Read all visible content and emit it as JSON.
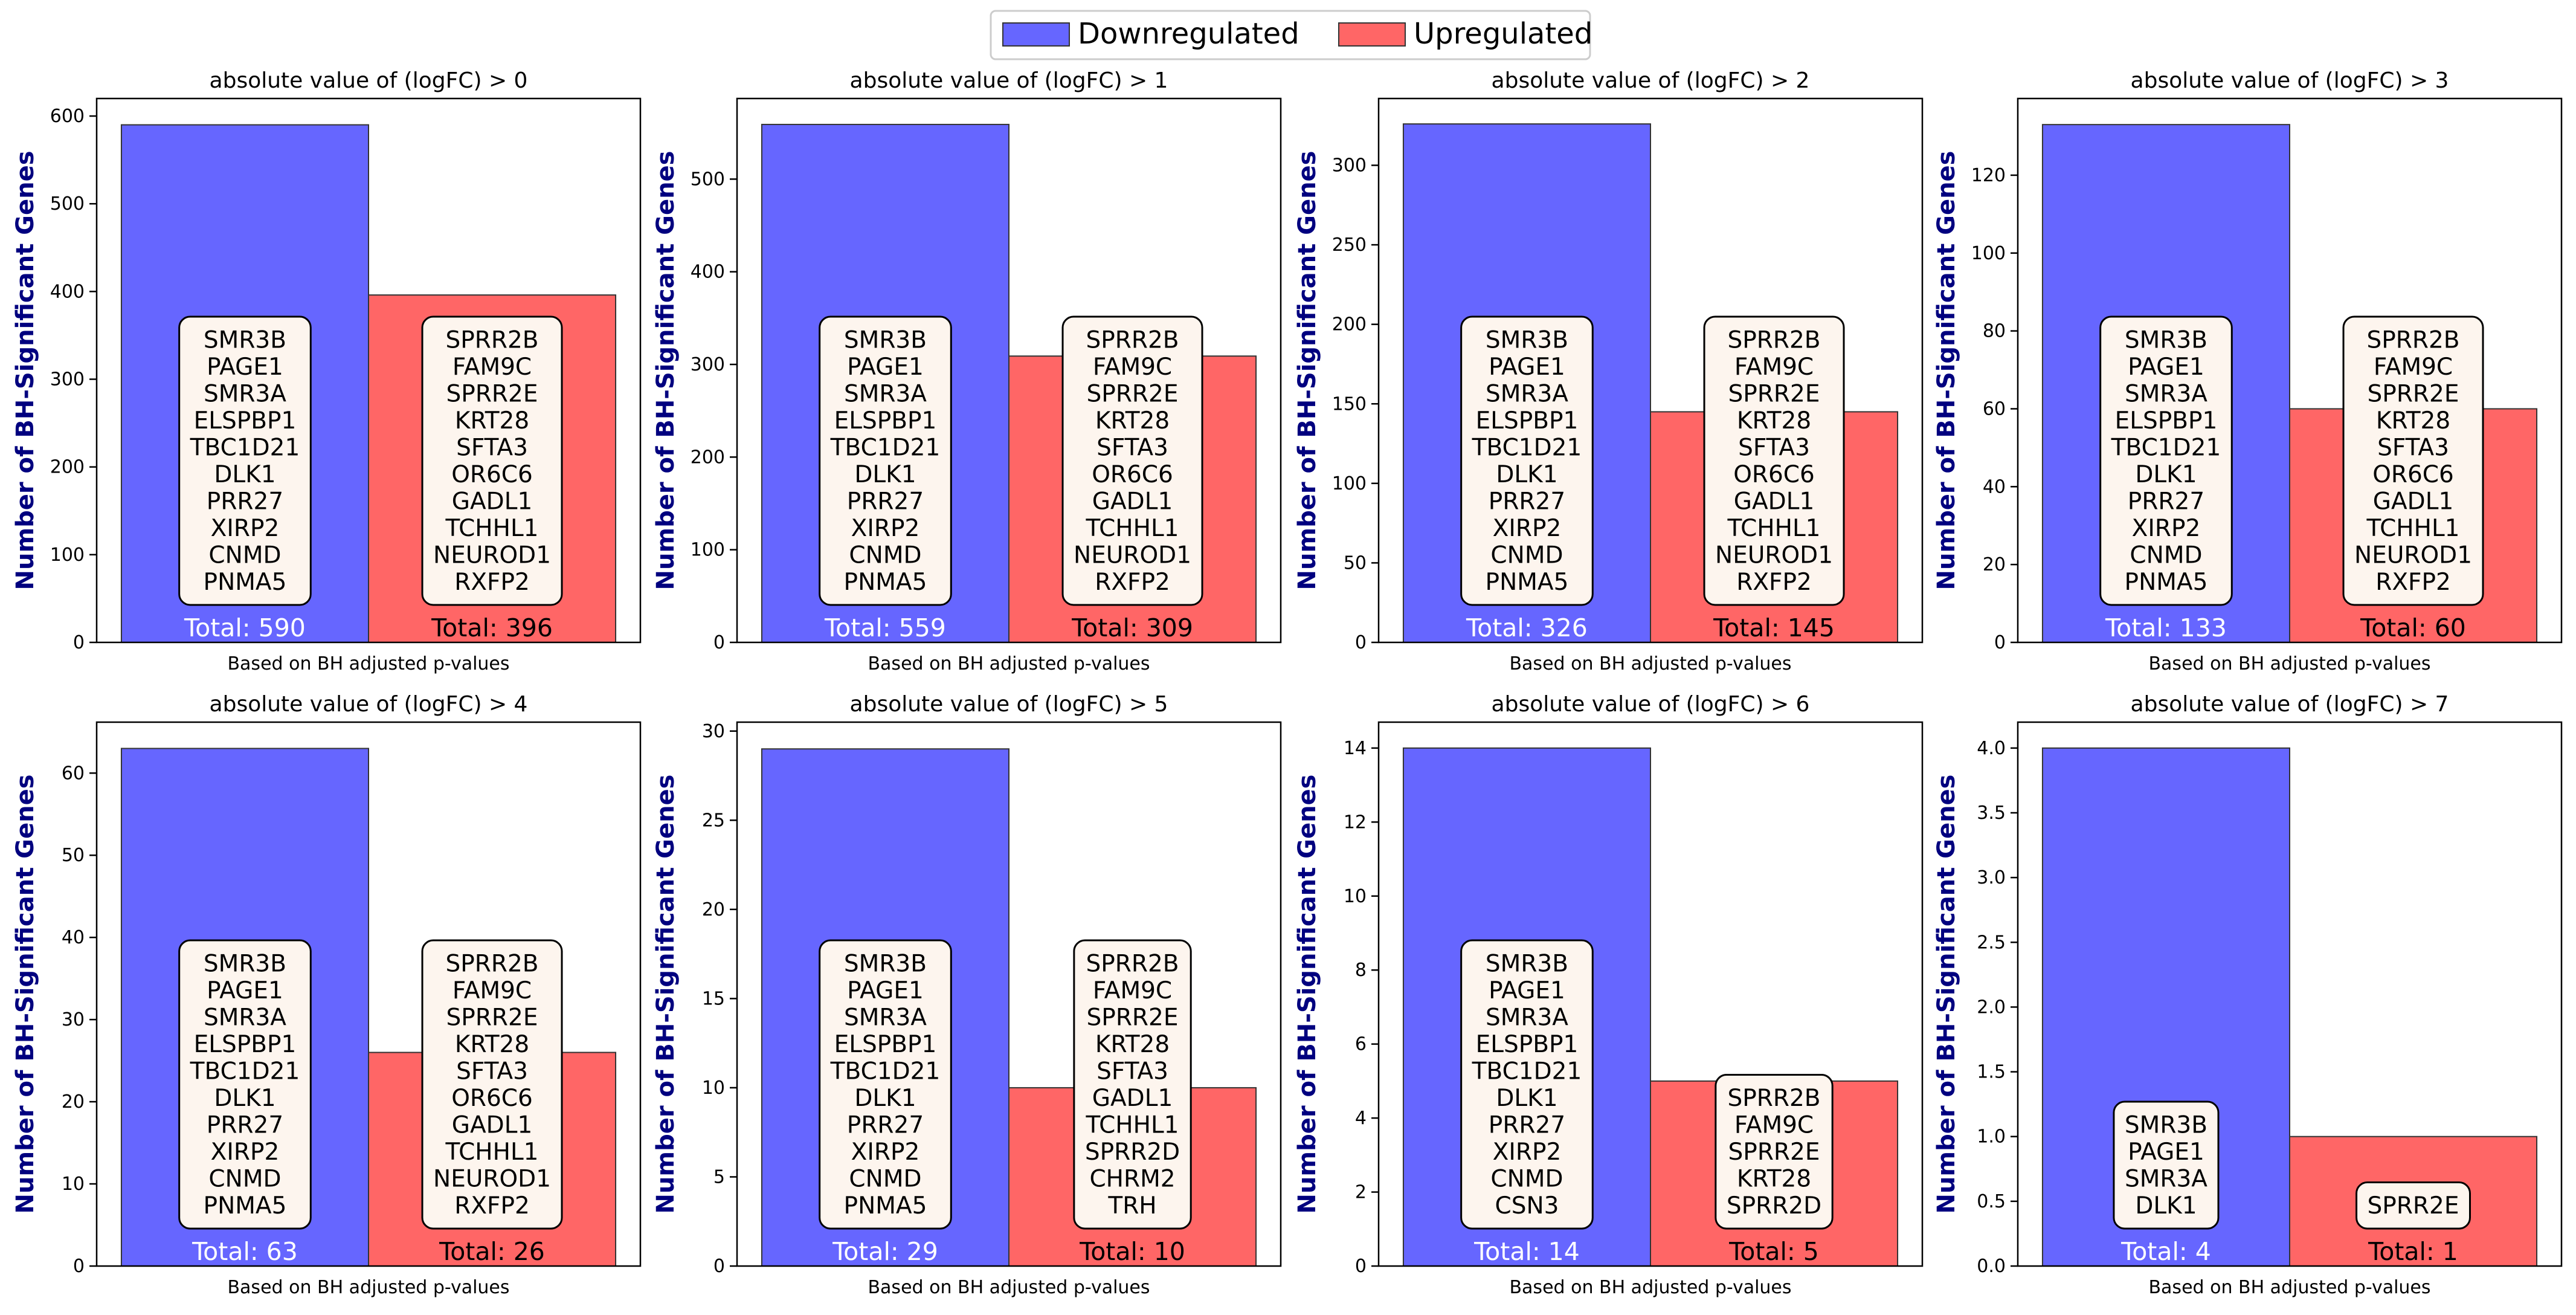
{
  "legend": [
    {
      "label": "Downregulated",
      "color": "#6666ff"
    },
    {
      "label": "Upregulated",
      "color": "#ff6666"
    }
  ],
  "colors": {
    "down": "#6666ff",
    "up": "#ff6666",
    "edge": "#333333",
    "box_fill": "#fdf5ee"
  },
  "chart_data": [
    {
      "type": "bar",
      "title": "absolute value of (logFC) > 0",
      "xlabel": "Based on BH adjusted p-values",
      "ylabel": "Number of BH-Significant Genes",
      "ylim": [
        0,
        620
      ],
      "yticks": [
        0,
        100,
        200,
        300,
        400,
        500,
        600
      ],
      "categories": [
        "Downregulated",
        "Upregulated"
      ],
      "values": [
        590,
        396
      ],
      "totals": [
        "Total: 590",
        "Total: 396"
      ],
      "down_genes": [
        "SMR3B",
        "PAGE1",
        "SMR3A",
        "ELSPBP1",
        "TBC1D21",
        "DLK1",
        "PRR27",
        "XIRP2",
        "CNMD",
        "PNMA5"
      ],
      "up_genes": [
        "SPRR2B",
        "FAM9C",
        "SPRR2E",
        "KRT28",
        "SFTA3",
        "OR6C6",
        "GADL1",
        "TCHHL1",
        "NEUROD1",
        "RXFP2"
      ]
    },
    {
      "type": "bar",
      "title": "absolute value of (logFC) > 1",
      "xlabel": "Based on BH adjusted p-values",
      "ylabel": "Number of BH-Significant Genes",
      "ylim": [
        0,
        587
      ],
      "yticks": [
        0,
        100,
        200,
        300,
        400,
        500
      ],
      "categories": [
        "Downregulated",
        "Upregulated"
      ],
      "values": [
        559,
        309
      ],
      "totals": [
        "Total: 559",
        "Total: 309"
      ],
      "down_genes": [
        "SMR3B",
        "PAGE1",
        "SMR3A",
        "ELSPBP1",
        "TBC1D21",
        "DLK1",
        "PRR27",
        "XIRP2",
        "CNMD",
        "PNMA5"
      ],
      "up_genes": [
        "SPRR2B",
        "FAM9C",
        "SPRR2E",
        "KRT28",
        "SFTA3",
        "OR6C6",
        "GADL1",
        "TCHHL1",
        "NEUROD1",
        "RXFP2"
      ]
    },
    {
      "type": "bar",
      "title": "absolute value of (logFC) > 2",
      "xlabel": "Based on BH adjusted p-values",
      "ylabel": "Number of BH-Significant Genes",
      "ylim": [
        0,
        342
      ],
      "yticks": [
        0,
        50,
        100,
        150,
        200,
        250,
        300
      ],
      "categories": [
        "Downregulated",
        "Upregulated"
      ],
      "values": [
        326,
        145
      ],
      "totals": [
        "Total: 326",
        "Total: 145"
      ],
      "down_genes": [
        "SMR3B",
        "PAGE1",
        "SMR3A",
        "ELSPBP1",
        "TBC1D21",
        "DLK1",
        "PRR27",
        "XIRP2",
        "CNMD",
        "PNMA5"
      ],
      "up_genes": [
        "SPRR2B",
        "FAM9C",
        "SPRR2E",
        "KRT28",
        "SFTA3",
        "OR6C6",
        "GADL1",
        "TCHHL1",
        "NEUROD1",
        "RXFP2"
      ]
    },
    {
      "type": "bar",
      "title": "absolute value of (logFC) > 3",
      "xlabel": "Based on BH adjusted p-values",
      "ylabel": "Number of BH-Significant Genes",
      "ylim": [
        0,
        139.7
      ],
      "yticks": [
        0,
        20,
        40,
        60,
        80,
        100,
        120
      ],
      "categories": [
        "Downregulated",
        "Upregulated"
      ],
      "values": [
        133,
        60
      ],
      "totals": [
        "Total: 133",
        "Total: 60"
      ],
      "down_genes": [
        "SMR3B",
        "PAGE1",
        "SMR3A",
        "ELSPBP1",
        "TBC1D21",
        "DLK1",
        "PRR27",
        "XIRP2",
        "CNMD",
        "PNMA5"
      ],
      "up_genes": [
        "SPRR2B",
        "FAM9C",
        "SPRR2E",
        "KRT28",
        "SFTA3",
        "OR6C6",
        "GADL1",
        "TCHHL1",
        "NEUROD1",
        "RXFP2"
      ]
    },
    {
      "type": "bar",
      "title": "absolute value of (logFC) > 4",
      "xlabel": "Based on BH adjusted p-values",
      "ylabel": "Number of BH-Significant Genes",
      "ylim": [
        0,
        66.2
      ],
      "yticks": [
        0,
        10,
        20,
        30,
        40,
        50,
        60
      ],
      "categories": [
        "Downregulated",
        "Upregulated"
      ],
      "values": [
        63,
        26
      ],
      "totals": [
        "Total: 63",
        "Total: 26"
      ],
      "down_genes": [
        "SMR3B",
        "PAGE1",
        "SMR3A",
        "ELSPBP1",
        "TBC1D21",
        "DLK1",
        "PRR27",
        "XIRP2",
        "CNMD",
        "PNMA5"
      ],
      "up_genes": [
        "SPRR2B",
        "FAM9C",
        "SPRR2E",
        "KRT28",
        "SFTA3",
        "OR6C6",
        "GADL1",
        "TCHHL1",
        "NEUROD1",
        "RXFP2"
      ]
    },
    {
      "type": "bar",
      "title": "absolute value of (logFC) > 5",
      "xlabel": "Based on BH adjusted p-values",
      "ylabel": "Number of BH-Significant Genes",
      "ylim": [
        0,
        30.5
      ],
      "yticks": [
        0,
        5,
        10,
        15,
        20,
        25,
        30
      ],
      "categories": [
        "Downregulated",
        "Upregulated"
      ],
      "values": [
        29,
        10
      ],
      "totals": [
        "Total: 29",
        "Total: 10"
      ],
      "down_genes": [
        "SMR3B",
        "PAGE1",
        "SMR3A",
        "ELSPBP1",
        "TBC1D21",
        "DLK1",
        "PRR27",
        "XIRP2",
        "CNMD",
        "PNMA5"
      ],
      "up_genes": [
        "SPRR2B",
        "FAM9C",
        "SPRR2E",
        "KRT28",
        "SFTA3",
        "GADL1",
        "TCHHL1",
        "SPRR2D",
        "CHRM2",
        "TRH"
      ]
    },
    {
      "type": "bar",
      "title": "absolute value of (logFC) > 6",
      "xlabel": "Based on BH adjusted p-values",
      "ylabel": "Number of BH-Significant Genes",
      "ylim": [
        0,
        14.7
      ],
      "yticks": [
        0,
        2,
        4,
        6,
        8,
        10,
        12,
        14
      ],
      "categories": [
        "Downregulated",
        "Upregulated"
      ],
      "values": [
        14,
        5
      ],
      "totals": [
        "Total: 14",
        "Total: 5"
      ],
      "down_genes": [
        "SMR3B",
        "PAGE1",
        "SMR3A",
        "ELSPBP1",
        "TBC1D21",
        "DLK1",
        "PRR27",
        "XIRP2",
        "CNMD",
        "CSN3"
      ],
      "up_genes": [
        "SPRR2B",
        "FAM9C",
        "SPRR2E",
        "KRT28",
        "SPRR2D"
      ]
    },
    {
      "type": "bar",
      "title": "absolute value of (logFC) > 7",
      "xlabel": "Based on BH adjusted p-values",
      "ylabel": "Number of BH-Significant Genes",
      "ylim": [
        0,
        4.2
      ],
      "yticks": [
        "0.0",
        "0.5",
        "1.0",
        "1.5",
        "2.0",
        "2.5",
        "3.0",
        "3.5",
        "4.0"
      ],
      "categories": [
        "Downregulated",
        "Upregulated"
      ],
      "values": [
        4,
        1
      ],
      "totals": [
        "Total: 4",
        "Total: 1"
      ],
      "down_genes": [
        "SMR3B",
        "PAGE1",
        "SMR3A",
        "DLK1"
      ],
      "up_genes": [
        "SPRR2E"
      ]
    }
  ]
}
